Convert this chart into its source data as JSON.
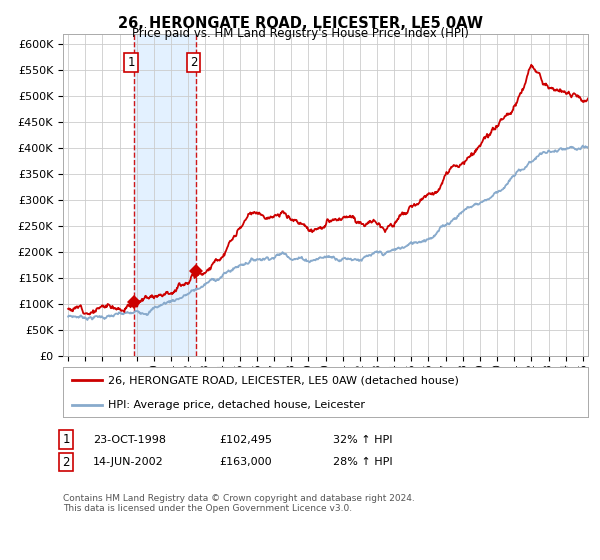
{
  "title": "26, HERONGATE ROAD, LEICESTER, LE5 0AW",
  "subtitle": "Price paid vs. HM Land Registry's House Price Index (HPI)",
  "ylim": [
    0,
    620000
  ],
  "yticks": [
    0,
    50000,
    100000,
    150000,
    200000,
    250000,
    300000,
    350000,
    400000,
    450000,
    500000,
    550000,
    600000
  ],
  "ytick_labels": [
    "£0",
    "£50K",
    "£100K",
    "£150K",
    "£200K",
    "£250K",
    "£300K",
    "£350K",
    "£400K",
    "£450K",
    "£500K",
    "£550K",
    "£600K"
  ],
  "sale1_date": 1998.81,
  "sale1_price": 102495,
  "sale1_label": "1",
  "sale2_date": 2002.45,
  "sale2_price": 163000,
  "sale2_label": "2",
  "line_color_red": "#cc0000",
  "line_color_blue": "#88aacc",
  "vline_color": "#cc0000",
  "shade_color": "#ddeeff",
  "legend_entry1": "26, HERONGATE ROAD, LEICESTER, LE5 0AW (detached house)",
  "legend_entry2": "HPI: Average price, detached house, Leicester",
  "sale1_date_str": "23-OCT-1998",
  "sale1_price_str": "£102,495",
  "sale1_hpi_str": "32% ↑ HPI",
  "sale2_date_str": "14-JUN-2002",
  "sale2_price_str": "£163,000",
  "sale2_hpi_str": "28% ↑ HPI",
  "footer": "Contains HM Land Registry data © Crown copyright and database right 2024.\nThis data is licensed under the Open Government Licence v3.0.",
  "background_color": "#ffffff",
  "grid_color": "#cccccc",
  "xlim_left": 1994.7,
  "xlim_right": 2025.3
}
